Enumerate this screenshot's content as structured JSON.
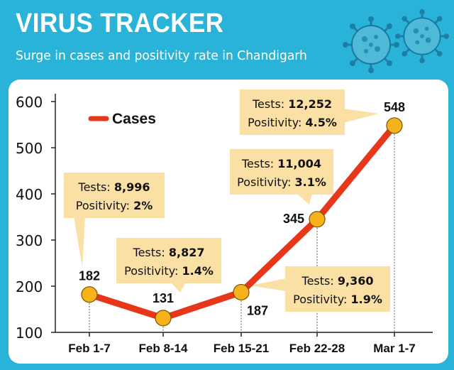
{
  "header": {
    "title": "VIRUS TRACKER",
    "subtitle": "Surge in cases and positivity rate in Chandigarh"
  },
  "colors": {
    "background": "#2ab3d8",
    "line": "#e8361a",
    "marker": "#f6b21b",
    "callout": "#fbe0a6",
    "axis": "#222222"
  },
  "chart_data": {
    "type": "line",
    "title": "",
    "xlabel": "",
    "ylabel": "",
    "ylim": [
      100,
      600
    ],
    "yticks": [
      "100",
      "200",
      "300",
      "400",
      "500",
      "600"
    ],
    "categories": [
      "Feb 1-7",
      "Feb 8-14",
      "Feb 15-21",
      "Feb 22-28",
      "Mar 1-7"
    ],
    "legend": {
      "placement": "top-left"
    },
    "series": [
      {
        "name": "Cases",
        "values": [
          182,
          131,
          187,
          345,
          548
        ],
        "labels": [
          "182",
          "131",
          "187",
          "345",
          "548"
        ]
      }
    ],
    "annotations": [
      {
        "tests_label": "Tests:",
        "tests": "8,996",
        "positivity_label": "Positivity:",
        "positivity": "2%"
      },
      {
        "tests_label": "Tests:",
        "tests": "8,827",
        "positivity_label": "Positivity:",
        "positivity": "1.4%"
      },
      {
        "tests_label": "Tests:",
        "tests": "9,360",
        "positivity_label": "Positivity:",
        "positivity": "1.9%"
      },
      {
        "tests_label": "Tests:",
        "tests": "11,004",
        "positivity_label": "Positivity:",
        "positivity": "3.1%"
      },
      {
        "tests_label": "Tests:",
        "tests": "12,252",
        "positivity_label": "Positivity:",
        "positivity": "4.5%"
      }
    ]
  }
}
